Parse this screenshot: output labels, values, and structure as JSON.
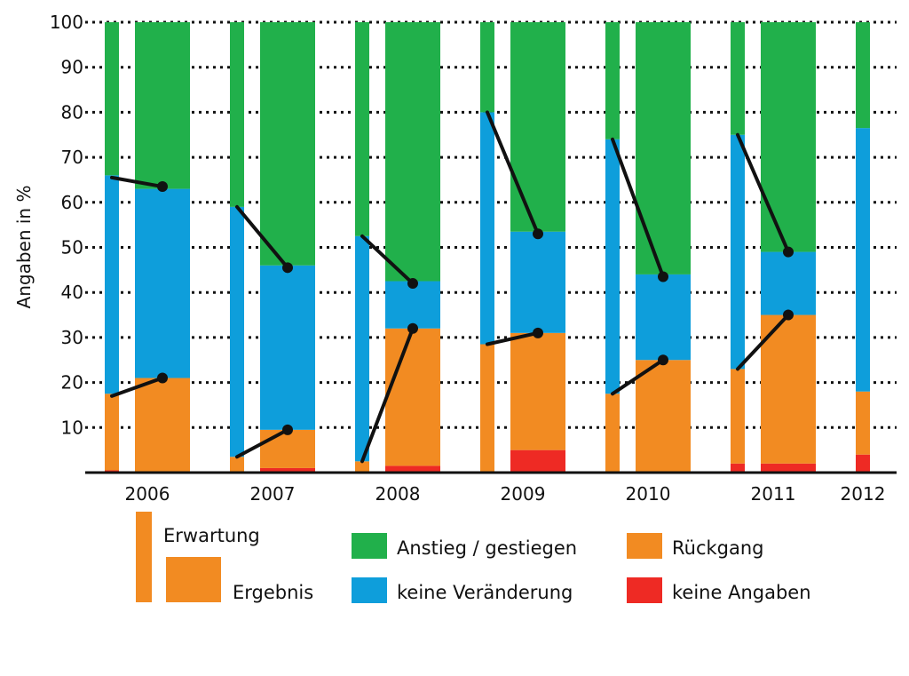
{
  "chart_data": {
    "type": "bar",
    "ylabel": "Angaben in %",
    "ylim": [
      0,
      100
    ],
    "yticks": [
      10,
      20,
      30,
      40,
      50,
      60,
      70,
      80,
      90,
      100
    ],
    "grid": true,
    "categories": [
      "2006",
      "2007",
      "2008",
      "2009",
      "2010",
      "2011",
      "2012"
    ],
    "series": [
      {
        "name": "keine Angaben",
        "color": "#ee2a24",
        "erwartung": [
          0.5,
          0,
          0,
          0,
          0,
          2,
          4
        ],
        "ergebnis": [
          0,
          1,
          1.5,
          5,
          0,
          2
        ]
      },
      {
        "name": "Rückgang",
        "color": "#f28b22",
        "erwartung": [
          17,
          3.5,
          2.5,
          28.5,
          17.5,
          21,
          14
        ],
        "ergebnis": [
          21,
          8.5,
          30.5,
          26,
          25,
          33
        ]
      },
      {
        "name": "keine Veränderung",
        "color": "#0e9edb",
        "erwartung": [
          48.5,
          55.5,
          50,
          51.5,
          56.5,
          52,
          58.5
        ],
        "ergebnis": [
          42,
          36.5,
          10.5,
          22.5,
          19,
          14
        ]
      },
      {
        "name": "Anstieg / gestiegen",
        "color": "#21b04b",
        "erwartung": [
          34,
          41,
          47.5,
          20,
          26,
          25,
          23.5
        ],
        "ergebnis": [
          37,
          54,
          57.5,
          46.5,
          56,
          51
        ]
      }
    ],
    "connectors": [
      {
        "year": "2006",
        "rueckgang": [
          17,
          21
        ],
        "veraenderung": [
          65.5,
          63.5
        ]
      },
      {
        "year": "2007",
        "rueckgang": [
          3.5,
          9.5
        ],
        "veraenderung": [
          59,
          45.5
        ]
      },
      {
        "year": "2008",
        "rueckgang": [
          2.5,
          32
        ],
        "veraenderung": [
          52.5,
          42
        ]
      },
      {
        "year": "2009",
        "rueckgang": [
          28.5,
          31
        ],
        "veraenderung": [
          80,
          53
        ]
      },
      {
        "year": "2010",
        "rueckgang": [
          17.5,
          25
        ],
        "veraenderung": [
          74,
          43.5
        ]
      },
      {
        "year": "2011",
        "rueckgang": [
          23,
          35
        ],
        "veraenderung": [
          75,
          49
        ]
      }
    ],
    "legend": {
      "erwartung": "Erwartung",
      "ergebnis": "Ergebnis",
      "anstieg": "Anstieg / gestiegen",
      "veraenderung": "keine Veränderung",
      "rueckgang": "Rückgang",
      "keine_angaben": "keine Angaben"
    }
  }
}
